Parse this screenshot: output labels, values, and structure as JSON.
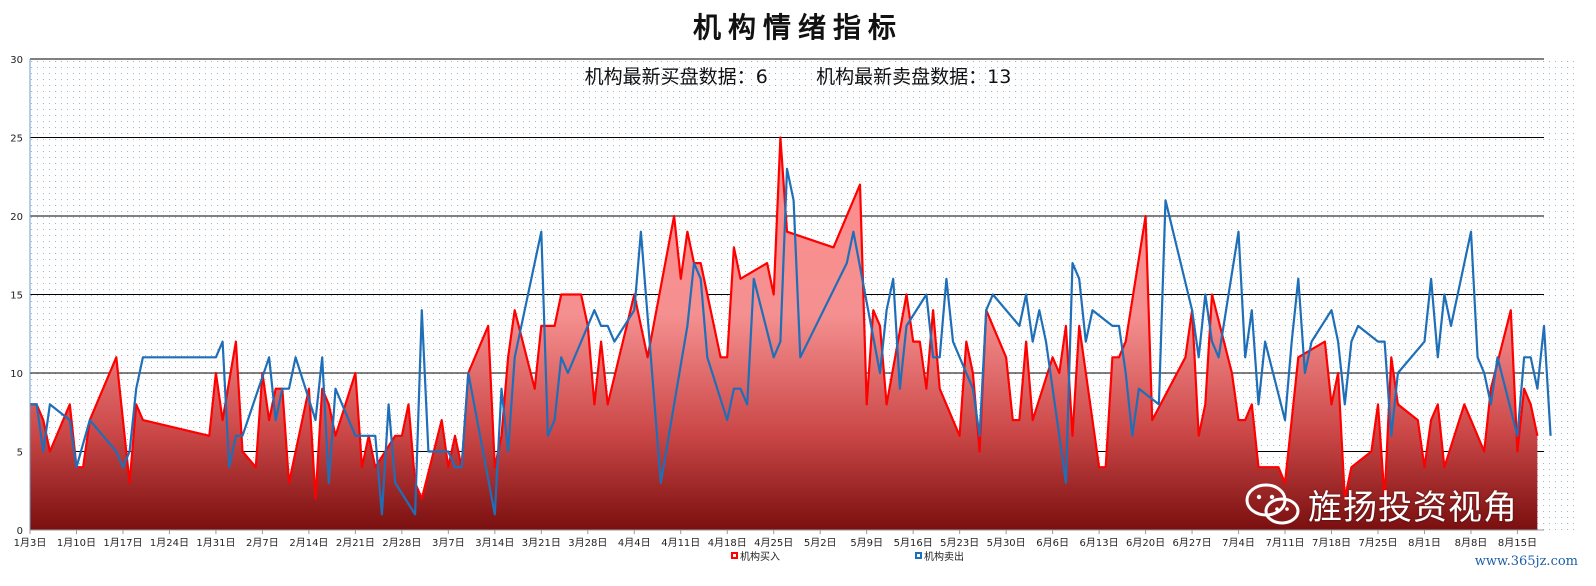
{
  "subtitle": {
    "buy_label": "机构最新买盘数据：",
    "buy_value": "6",
    "sell_label": "机构最新卖盘数据：",
    "sell_value": "13"
  },
  "watermark": "旌扬投资视角",
  "site": "www.365jz.com",
  "chart_data": {
    "type": "area",
    "title": "机构情绪指标",
    "xlabel": "",
    "ylabel": "",
    "ylim": [
      0,
      30
    ],
    "yticks": [
      0,
      5,
      10,
      15,
      20,
      25,
      30
    ],
    "x_tick_labels": [
      "1月3日",
      "1月10日",
      "1月17日",
      "1月24日",
      "1月31日",
      "2月7日",
      "2月14日",
      "2月21日",
      "2月28日",
      "3月7日",
      "3月14日",
      "3月21日",
      "3月28日",
      "4月4日",
      "4月11日",
      "4月18日",
      "4月25日",
      "5月2日",
      "5月9日",
      "5月16日",
      "5月23日",
      "5月30日",
      "6月6日",
      "6月13日",
      "6月20日",
      "6月27日",
      "7月4日",
      "7月11日",
      "7月18日",
      "7月25日",
      "8月1日",
      "8月8日",
      "8月15日"
    ],
    "x_start_label": "1月3日",
    "x_end_label": "8月19日",
    "grid": true,
    "legend_position": "bottom",
    "series": [
      {
        "name": "机构买入",
        "style": "filled area",
        "color": "#ff0000",
        "fill_color": "#f06a6a",
        "points": [
          [
            "1月3日",
            8
          ],
          [
            "1月4日",
            8
          ],
          [
            "1月5日",
            7
          ],
          [
            "1月6日",
            5
          ],
          [
            "1月9日",
            8
          ],
          [
            "1月10日",
            4
          ],
          [
            "1月11日",
            4
          ],
          [
            "1月12日",
            7
          ],
          [
            "1月16日",
            11
          ],
          [
            "1月18日",
            3
          ],
          [
            "1月19日",
            8
          ],
          [
            "1月20日",
            7
          ],
          [
            "1月30日",
            6
          ],
          [
            "1月31日",
            10
          ],
          [
            "2月1日",
            7
          ],
          [
            "2月3日",
            12
          ],
          [
            "2月4日",
            5
          ],
          [
            "2月6日",
            4
          ],
          [
            "2月7日",
            10
          ],
          [
            "2月8日",
            7
          ],
          [
            "2月9日",
            9
          ],
          [
            "2月10日",
            9
          ],
          [
            "2月11日",
            3
          ],
          [
            "2月14日",
            9
          ],
          [
            "2月15日",
            2
          ],
          [
            "2月16日",
            9
          ],
          [
            "2月17日",
            8
          ],
          [
            "2月18日",
            6
          ],
          [
            "2月21日",
            10
          ],
          [
            "2月22日",
            4
          ],
          [
            "2月23日",
            6
          ],
          [
            "2月24日",
            4
          ],
          [
            "2月27日",
            6
          ],
          [
            "2月28日",
            6
          ],
          [
            "3月1日",
            8
          ],
          [
            "3月2日",
            3
          ],
          [
            "3月3日",
            2
          ],
          [
            "3月6日",
            7
          ],
          [
            "3月7日",
            4
          ],
          [
            "3月8日",
            6
          ],
          [
            "3月9日",
            4
          ],
          [
            "3月10日",
            10
          ],
          [
            "3月13日",
            13
          ],
          [
            "3月14日",
            4
          ],
          [
            "3月15日",
            6
          ],
          [
            "3月16日",
            11
          ],
          [
            "3月17日",
            14
          ],
          [
            "3月20日",
            9
          ],
          [
            "3月21日",
            13
          ],
          [
            "3月22日",
            13
          ],
          [
            "3月23日",
            13
          ],
          [
            "3月24日",
            15
          ],
          [
            "3月27日",
            15
          ],
          [
            "3月28日",
            13
          ],
          [
            "3月29日",
            8
          ],
          [
            "3月30日",
            12
          ],
          [
            "3月31日",
            8
          ],
          [
            "4月4日",
            15
          ],
          [
            "4月6日",
            11
          ],
          [
            "4月10日",
            20
          ],
          [
            "4月11日",
            16
          ],
          [
            "4月12日",
            19
          ],
          [
            "4月13日",
            17
          ],
          [
            "4月14日",
            17
          ],
          [
            "4月17日",
            11
          ],
          [
            "4月18日",
            11
          ],
          [
            "4月19日",
            18
          ],
          [
            "4月20日",
            16
          ],
          [
            "4月24日",
            17
          ],
          [
            "4月25日",
            15
          ],
          [
            "4月26日",
            25
          ],
          [
            "4月27日",
            19
          ],
          [
            "5月4日",
            18
          ],
          [
            "5月8日",
            22
          ],
          [
            "5月9日",
            8
          ],
          [
            "5月10日",
            14
          ],
          [
            "5月11日",
            13
          ],
          [
            "5月12日",
            8
          ],
          [
            "5月15日",
            15
          ],
          [
            "5月16日",
            12
          ],
          [
            "5月17日",
            12
          ],
          [
            "5月18日",
            9
          ],
          [
            "5月19日",
            14
          ],
          [
            "5月20日",
            9
          ],
          [
            "5月23日",
            6
          ],
          [
            "5月24日",
            12
          ],
          [
            "5月25日",
            10
          ],
          [
            "5月26日",
            5
          ],
          [
            "5月27日",
            14
          ],
          [
            "5月30日",
            11
          ],
          [
            "5月31日",
            7
          ],
          [
            "6月1日",
            7
          ],
          [
            "6月2日",
            12
          ],
          [
            "6月3日",
            7
          ],
          [
            "6月6日",
            11
          ],
          [
            "6月7日",
            10
          ],
          [
            "6月8日",
            13
          ],
          [
            "6月9日",
            6
          ],
          [
            "6月10日",
            13
          ],
          [
            "6月13日",
            4
          ],
          [
            "6月14日",
            4
          ],
          [
            "6月15日",
            11
          ],
          [
            "6月16日",
            11
          ],
          [
            "6月17日",
            12
          ],
          [
            "6月20日",
            20
          ],
          [
            "6月21日",
            7
          ],
          [
            "6月26日",
            11
          ],
          [
            "6月27日",
            14
          ],
          [
            "6月28日",
            6
          ],
          [
            "6月29日",
            8
          ],
          [
            "6月30日",
            15
          ],
          [
            "7月3日",
            10
          ],
          [
            "7月4日",
            7
          ],
          [
            "7月5日",
            7
          ],
          [
            "7月6日",
            8
          ],
          [
            "7月7日",
            4
          ],
          [
            "7月10日",
            4
          ],
          [
            "7月11日",
            3
          ],
          [
            "7月12日",
            7
          ],
          [
            "7月13日",
            11
          ],
          [
            "7月17日",
            12
          ],
          [
            "7月18日",
            8
          ],
          [
            "7月19日",
            10
          ],
          [
            "7月20日",
            2
          ],
          [
            "7月21日",
            4
          ],
          [
            "7月24日",
            5
          ],
          [
            "7月25日",
            8
          ],
          [
            "7月26日",
            2
          ],
          [
            "7月27日",
            11
          ],
          [
            "7月28日",
            8
          ],
          [
            "7月31日",
            7
          ],
          [
            "8月1日",
            4
          ],
          [
            "8月2日",
            7
          ],
          [
            "8月3日",
            8
          ],
          [
            "8月4日",
            4
          ],
          [
            "8月7日",
            8
          ],
          [
            "8月8日",
            7
          ],
          [
            "8月9日",
            6
          ],
          [
            "8月10日",
            5
          ],
          [
            "8月11日",
            9
          ],
          [
            "8月14日",
            14
          ],
          [
            "8月15日",
            5
          ],
          [
            "8月16日",
            9
          ],
          [
            "8月17日",
            8
          ],
          [
            "8月18日",
            6
          ]
        ]
      },
      {
        "name": "机构卖出",
        "style": "line",
        "color": "#1f6fb8",
        "points": [
          [
            "1月3日",
            8
          ],
          [
            "1月4日",
            8
          ],
          [
            "1月5日",
            5
          ],
          [
            "1月6日",
            8
          ],
          [
            "1月9日",
            7
          ],
          [
            "1月10日",
            4
          ],
          [
            "1月12日",
            7
          ],
          [
            "1月16日",
            5
          ],
          [
            "1月17日",
            4
          ],
          [
            "1月18日",
            5
          ],
          [
            "1月19日",
            9
          ],
          [
            "1月20日",
            11
          ],
          [
            "1月31日",
            11
          ],
          [
            "2月1日",
            12
          ],
          [
            "2月2日",
            4
          ],
          [
            "2月3日",
            6
          ],
          [
            "2月4日",
            6
          ],
          [
            "2月8日",
            11
          ],
          [
            "2月9日",
            7
          ],
          [
            "2月10日",
            9
          ],
          [
            "2月11日",
            9
          ],
          [
            "2月12日",
            11
          ],
          [
            "2月15日",
            7
          ],
          [
            "2月16日",
            11
          ],
          [
            "2月17日",
            3
          ],
          [
            "2月18日",
            9
          ],
          [
            "2月21日",
            6
          ],
          [
            "2月24日",
            6
          ],
          [
            "2月25日",
            1
          ],
          [
            "2月26日",
            8
          ],
          [
            "2月27日",
            3
          ],
          [
            "3月2日",
            1
          ],
          [
            "3月3日",
            14
          ],
          [
            "3月4日",
            5
          ],
          [
            "3月7日",
            5
          ],
          [
            "3月8日",
            4
          ],
          [
            "3月9日",
            4
          ],
          [
            "3月10日",
            10
          ],
          [
            "3月14日",
            1
          ],
          [
            "3月15日",
            9
          ],
          [
            "3月16日",
            5
          ],
          [
            "3月17日",
            11
          ],
          [
            "3月21日",
            19
          ],
          [
            "3月22日",
            6
          ],
          [
            "3月23日",
            7
          ],
          [
            "3月24日",
            11
          ],
          [
            "3月25日",
            10
          ],
          [
            "3月29日",
            14
          ],
          [
            "3月30日",
            13
          ],
          [
            "3月31日",
            13
          ],
          [
            "4月1日",
            12
          ],
          [
            "4月4日",
            14
          ],
          [
            "4月5日",
            19
          ],
          [
            "4月8日",
            3
          ],
          [
            "4月12日",
            13
          ],
          [
            "4月13日",
            17
          ],
          [
            "4月14日",
            16
          ],
          [
            "4月15日",
            11
          ],
          [
            "4月18日",
            7
          ],
          [
            "4月19日",
            9
          ],
          [
            "4月20日",
            9
          ],
          [
            "4月21日",
            8
          ],
          [
            "4月22日",
            16
          ],
          [
            "4月25日",
            11
          ],
          [
            "4月26日",
            12
          ],
          [
            "4月27日",
            23
          ],
          [
            "4月28日",
            21
          ],
          [
            "4月29日",
            11
          ],
          [
            "5月6日",
            17
          ],
          [
            "5月7日",
            19
          ],
          [
            "5月11日",
            10
          ],
          [
            "5月12日",
            14
          ],
          [
            "5月13日",
            16
          ],
          [
            "5月14日",
            9
          ],
          [
            "5月15日",
            13
          ],
          [
            "5月18日",
            15
          ],
          [
            "5月19日",
            11
          ],
          [
            "5月20日",
            11
          ],
          [
            "5月21日",
            16
          ],
          [
            "5月22日",
            12
          ],
          [
            "5月25日",
            9
          ],
          [
            "5月26日",
            6
          ],
          [
            "5月27日",
            14
          ],
          [
            "5月28日",
            15
          ],
          [
            "6月1日",
            13
          ],
          [
            "6月2日",
            15
          ],
          [
            "6月3日",
            12
          ],
          [
            "6月4日",
            14
          ],
          [
            "6月5日",
            12
          ],
          [
            "6月8日",
            3
          ],
          [
            "6月9日",
            17
          ],
          [
            "6月10日",
            16
          ],
          [
            "6月11日",
            12
          ],
          [
            "6月12日",
            14
          ],
          [
            "6月15日",
            13
          ],
          [
            "6月16日",
            13
          ],
          [
            "6月17日",
            10
          ],
          [
            "6月18日",
            6
          ],
          [
            "6月19日",
            9
          ],
          [
            "6月22日",
            8
          ],
          [
            "6月23日",
            21
          ],
          [
            "6月27日",
            14
          ],
          [
            "6月28日",
            11
          ],
          [
            "6月29日",
            15
          ],
          [
            "6月30日",
            12
          ],
          [
            "7月1日",
            11
          ],
          [
            "7月4日",
            19
          ],
          [
            "7月5日",
            11
          ],
          [
            "7月6日",
            14
          ],
          [
            "7月7日",
            8
          ],
          [
            "7月8日",
            12
          ],
          [
            "7月11日",
            7
          ],
          [
            "7月12日",
            12
          ],
          [
            "7月13日",
            16
          ],
          [
            "7月14日",
            10
          ],
          [
            "7月15日",
            12
          ],
          [
            "7月18日",
            14
          ],
          [
            "7月19日",
            12
          ],
          [
            "7月20日",
            8
          ],
          [
            "7月21日",
            12
          ],
          [
            "7月22日",
            13
          ],
          [
            "7月25日",
            12
          ],
          [
            "7月26日",
            12
          ],
          [
            "7月27日",
            6
          ],
          [
            "7月28日",
            10
          ],
          [
            "8月1日",
            12
          ],
          [
            "8月2日",
            16
          ],
          [
            "8月3日",
            11
          ],
          [
            "8月4日",
            15
          ],
          [
            "8月5日",
            13
          ],
          [
            "8月8日",
            19
          ],
          [
            "8月9日",
            11
          ],
          [
            "8月10日",
            10
          ],
          [
            "8月11日",
            8
          ],
          [
            "8月12日",
            11
          ],
          [
            "8月15日",
            6
          ],
          [
            "8月16日",
            11
          ],
          [
            "8月17日",
            11
          ],
          [
            "8月18日",
            9
          ],
          [
            "8月19日",
            13
          ],
          [
            "8月20日",
            6
          ]
        ]
      }
    ]
  }
}
